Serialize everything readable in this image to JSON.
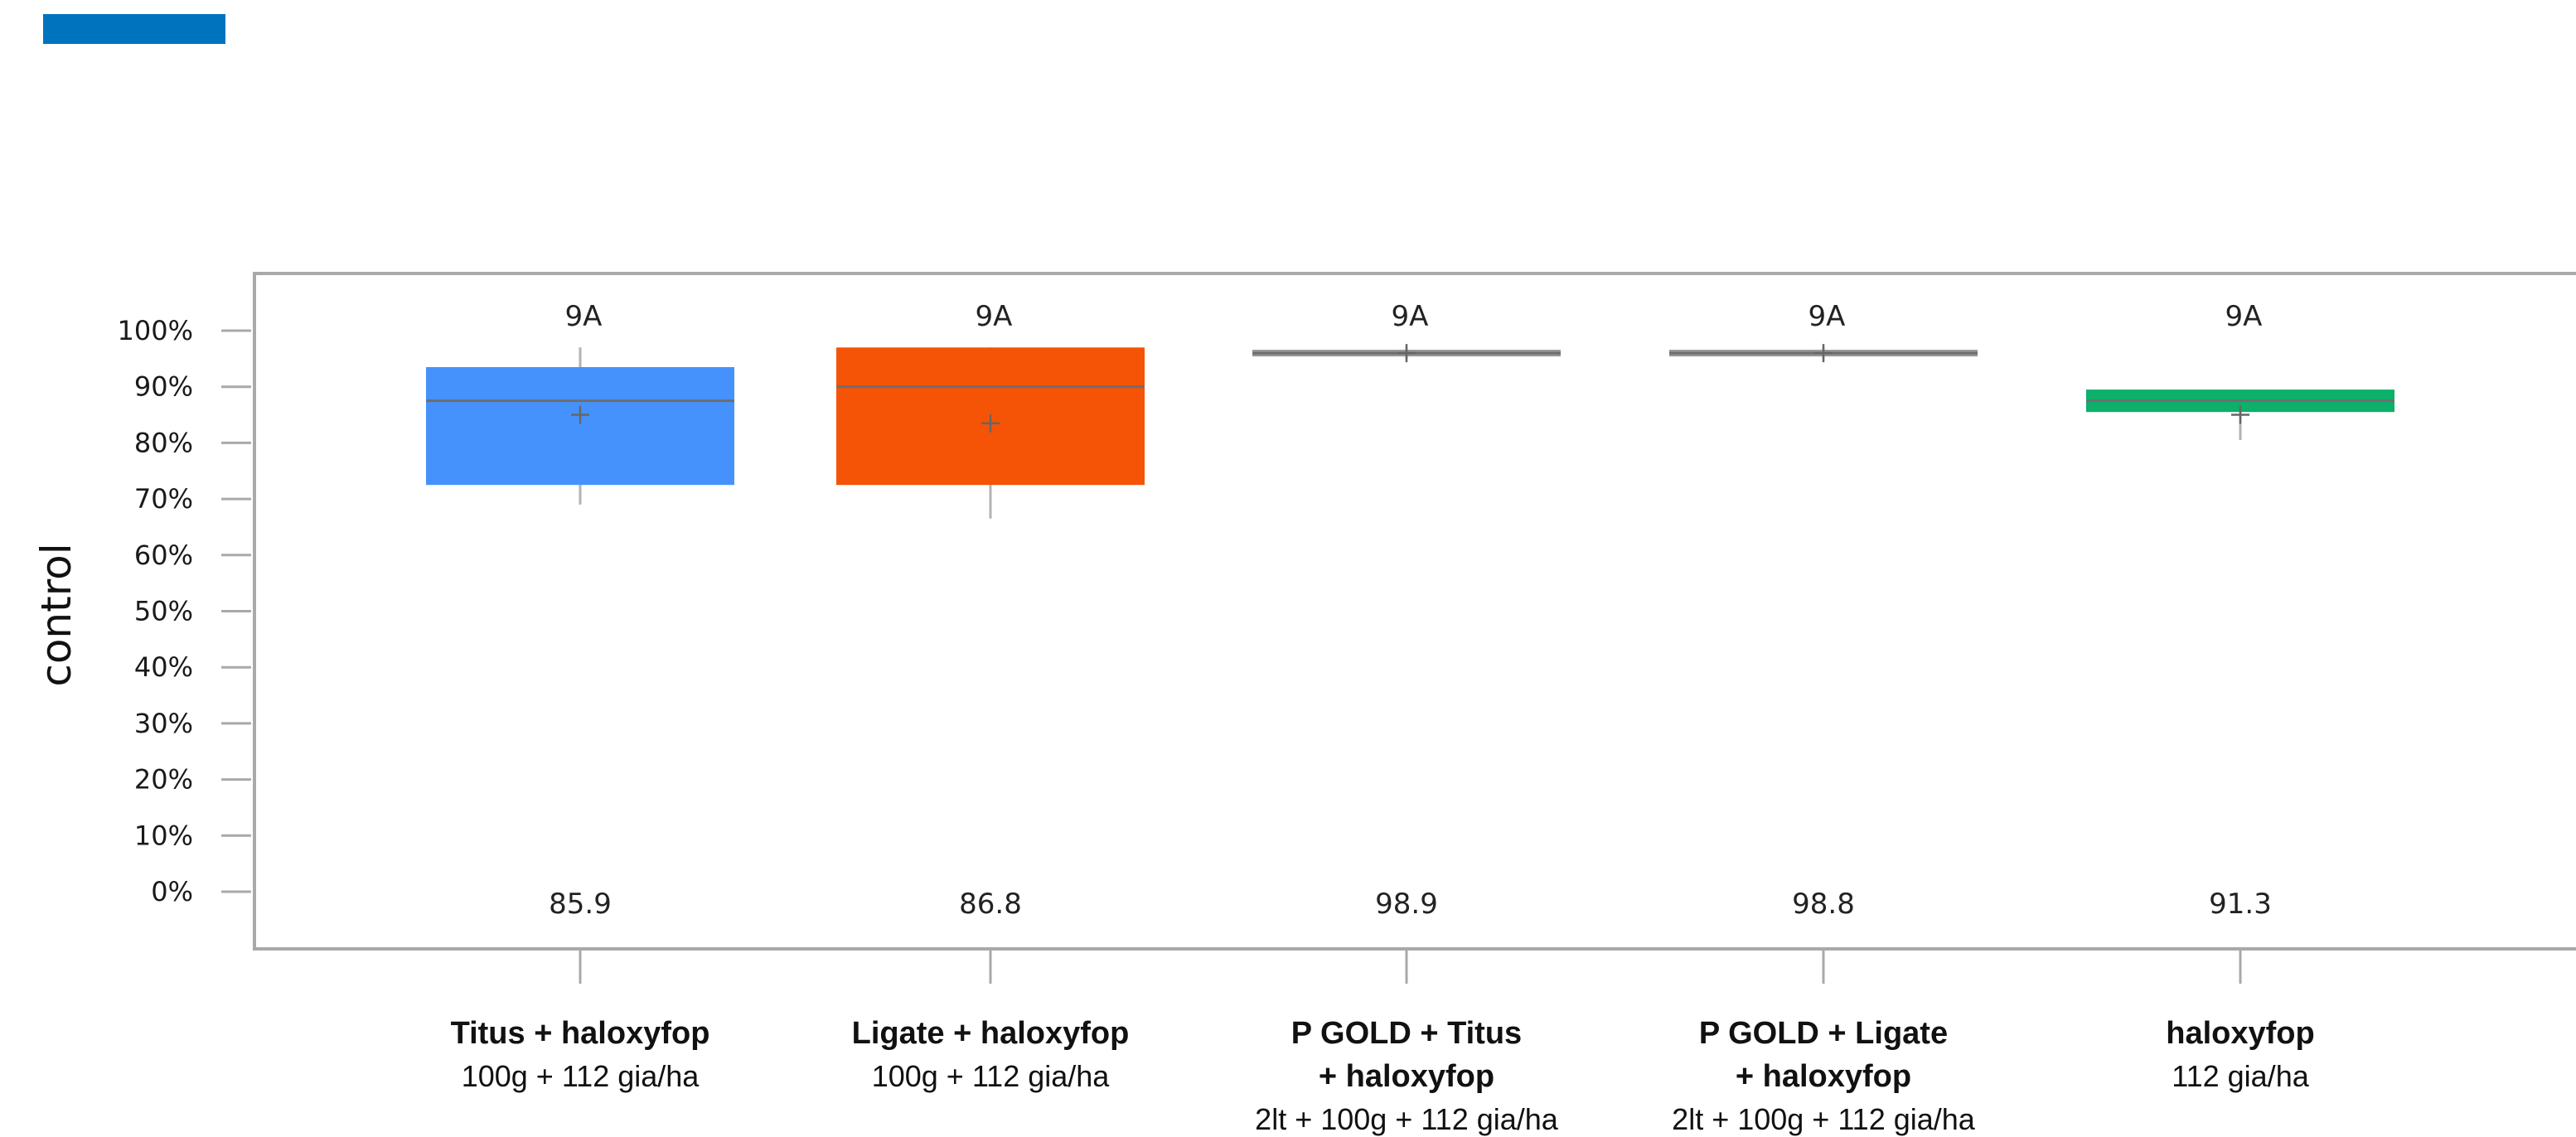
{
  "accent_color": "#0073bf",
  "chart_data": {
    "type": "box",
    "title": "",
    "xlabel": "",
    "ylabel": "control",
    "ylim": [
      0,
      100
    ],
    "yticks": [
      "0%",
      "10%",
      "20%",
      "30%",
      "40%",
      "50%",
      "60%",
      "70%",
      "80%",
      "90%",
      "100%"
    ],
    "grid": false,
    "categories": [
      {
        "name_lines": [
          "Titus + haloxyfop"
        ],
        "dose": "100g + 112 gia/ha",
        "color": "#4592fd",
        "top_label": "9A",
        "bottom_label": "85.9",
        "q1": 72.5,
        "median": 87.5,
        "q3": 93.5,
        "whisker_low": 69,
        "whisker_high": 97,
        "mean": 85
      },
      {
        "name_lines": [
          "Ligate + haloxyfop"
        ],
        "dose": "100g + 112 gia/ha",
        "color": "#f55305",
        "top_label": "9A",
        "bottom_label": "86.8",
        "q1": 72.5,
        "median": 90,
        "q3": 97,
        "whisker_low": 66.5,
        "whisker_high": 97,
        "mean": 83.5
      },
      {
        "name_lines": [
          "P GOLD + Titus",
          "+ haloxyfop"
        ],
        "dose": "2lt + 100g + 112 gia/ha",
        "color": "#969696",
        "top_label": "9A",
        "bottom_label": "98.9",
        "q1": 96,
        "median": 96,
        "q3": 96,
        "whisker_low": 95,
        "whisker_high": 97,
        "mean": 96
      },
      {
        "name_lines": [
          "P GOLD + Ligate",
          "+ haloxyfop"
        ],
        "dose": "2lt + 100g + 112 gia/ha",
        "color": "#969696",
        "top_label": "9A",
        "bottom_label": "98.8",
        "q1": 96,
        "median": 96,
        "q3": 96,
        "whisker_low": 95,
        "whisker_high": 97,
        "mean": 96
      },
      {
        "name_lines": [
          "haloxyfop"
        ],
        "dose": "112 gia/ha",
        "color": "#0cb06b",
        "top_label": "9A",
        "bottom_label": "91.3",
        "q1": 85.5,
        "median": 87.5,
        "q3": 89.5,
        "whisker_low": 80.5,
        "whisker_high": 89.5,
        "mean": 85
      }
    ]
  }
}
